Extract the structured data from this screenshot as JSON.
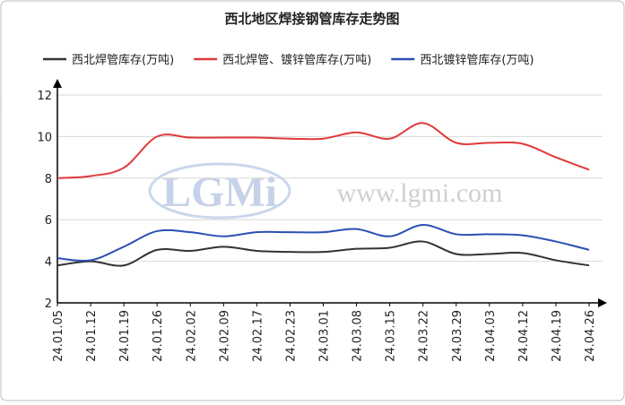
{
  "chart_data": {
    "type": "line",
    "title": "西北地区焊接钢管库存走势图",
    "categories": [
      "24.01.05",
      "24.01.12",
      "24.01.19",
      "24.01.26",
      "24.02.02",
      "24.02.09",
      "24.02.17",
      "24.02.23",
      "24.03.01",
      "24.03.08",
      "24.03.15",
      "24.03.22",
      "24.03.29",
      "24.04.03",
      "24.04.12",
      "24.04.19",
      "24.04.26"
    ],
    "series": [
      {
        "name": "西北焊管库存(万吨)",
        "color": "#333333",
        "values": [
          3.8,
          4.0,
          3.8,
          4.55,
          4.5,
          4.7,
          4.5,
          4.45,
          4.45,
          4.6,
          4.65,
          4.95,
          4.35,
          4.35,
          4.4,
          4.05,
          3.8
        ]
      },
      {
        "name": "西北焊管、镀锌管库存(万吨)",
        "color": "#e03a3a",
        "values": [
          8.0,
          8.1,
          8.5,
          10.0,
          9.95,
          9.95,
          9.95,
          9.9,
          9.9,
          10.2,
          9.9,
          10.65,
          9.7,
          9.7,
          9.65,
          9.0,
          8.4
        ]
      },
      {
        "name": "西北镀锌管库存(万吨)",
        "color": "#2a4fb5",
        "values": [
          4.15,
          4.05,
          4.7,
          5.45,
          5.4,
          5.2,
          5.4,
          5.4,
          5.4,
          5.55,
          5.2,
          5.75,
          5.3,
          5.3,
          5.25,
          4.95,
          4.55
        ]
      }
    ],
    "ylim": [
      2,
      12
    ],
    "yticks": [
      2,
      4,
      6,
      8,
      10,
      12
    ],
    "grid": true,
    "legend": "top",
    "watermark": {
      "logo": "LGMi",
      "url": "www.lgmi.com"
    }
  }
}
